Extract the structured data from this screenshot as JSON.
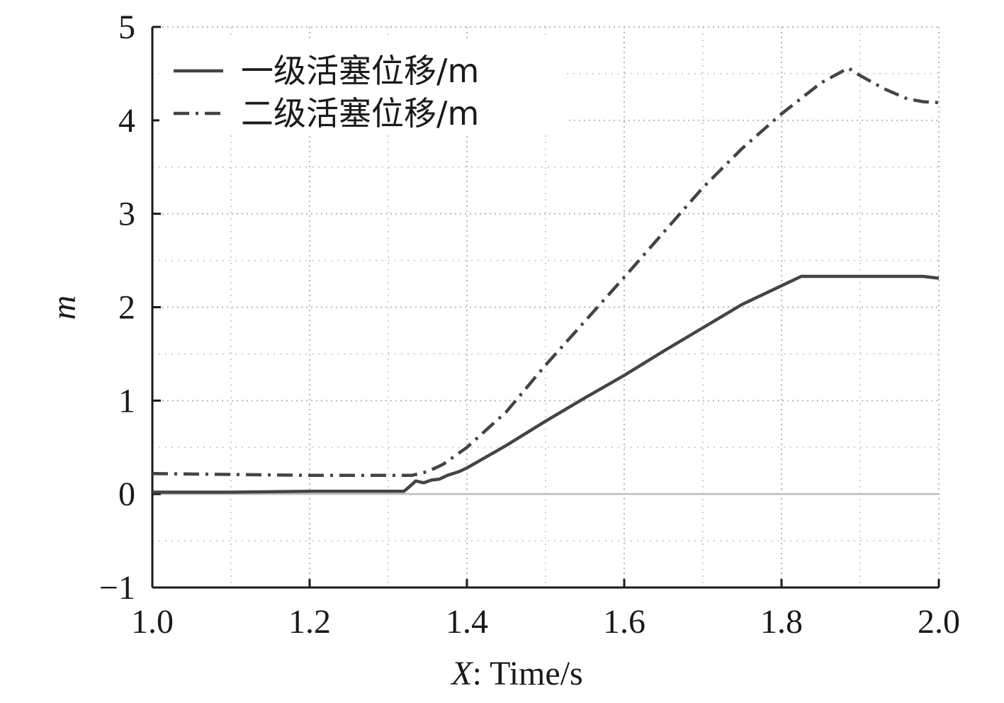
{
  "chart_data": {
    "type": "line",
    "xlabel_prefix": "X",
    "xlabel_suffix": ": Time/s",
    "ylabel": "m",
    "xlim": [
      1.0,
      2.0
    ],
    "ylim": [
      -1,
      5
    ],
    "x_ticks": [
      "1.0",
      "1.2",
      "1.4",
      "1.6",
      "1.8",
      "2.0"
    ],
    "y_ticks": [
      "−1",
      "0",
      "1",
      "2",
      "3",
      "4",
      "5"
    ],
    "x_tick_values": [
      1.0,
      1.2,
      1.4,
      1.6,
      1.8,
      2.0
    ],
    "y_tick_values": [
      -1,
      0,
      1,
      2,
      3,
      4,
      5
    ],
    "grid": true,
    "legend_position": "top-left",
    "series": [
      {
        "name": "一级活塞位移/m",
        "style": "solid",
        "color": "#444444",
        "points": [
          [
            1.0,
            0.02
          ],
          [
            1.1,
            0.02
          ],
          [
            1.2,
            0.03
          ],
          [
            1.3,
            0.03
          ],
          [
            1.32,
            0.03
          ],
          [
            1.327,
            0.08
          ],
          [
            1.335,
            0.14
          ],
          [
            1.345,
            0.12
          ],
          [
            1.355,
            0.15
          ],
          [
            1.365,
            0.16
          ],
          [
            1.375,
            0.2
          ],
          [
            1.39,
            0.24
          ],
          [
            1.4,
            0.28
          ],
          [
            1.45,
            0.52
          ],
          [
            1.5,
            0.78
          ],
          [
            1.55,
            1.03
          ],
          [
            1.6,
            1.27
          ],
          [
            1.65,
            1.53
          ],
          [
            1.7,
            1.78
          ],
          [
            1.75,
            2.03
          ],
          [
            1.8,
            2.23
          ],
          [
            1.825,
            2.33
          ],
          [
            1.85,
            2.33
          ],
          [
            1.9,
            2.33
          ],
          [
            1.95,
            2.33
          ],
          [
            1.98,
            2.33
          ],
          [
            2.0,
            2.31
          ]
        ]
      },
      {
        "name": "二级活塞位移/m",
        "style": "dashdot",
        "color": "#444444",
        "points": [
          [
            1.0,
            0.22
          ],
          [
            1.1,
            0.21
          ],
          [
            1.2,
            0.2
          ],
          [
            1.3,
            0.2
          ],
          [
            1.33,
            0.2
          ],
          [
            1.35,
            0.24
          ],
          [
            1.37,
            0.32
          ],
          [
            1.4,
            0.5
          ],
          [
            1.45,
            0.88
          ],
          [
            1.5,
            1.38
          ],
          [
            1.55,
            1.85
          ],
          [
            1.6,
            2.32
          ],
          [
            1.65,
            2.8
          ],
          [
            1.7,
            3.28
          ],
          [
            1.75,
            3.7
          ],
          [
            1.8,
            4.07
          ],
          [
            1.85,
            4.4
          ],
          [
            1.885,
            4.56
          ],
          [
            1.9,
            4.48
          ],
          [
            1.93,
            4.34
          ],
          [
            1.96,
            4.23
          ],
          [
            1.98,
            4.2
          ],
          [
            2.0,
            4.19
          ]
        ]
      }
    ]
  }
}
